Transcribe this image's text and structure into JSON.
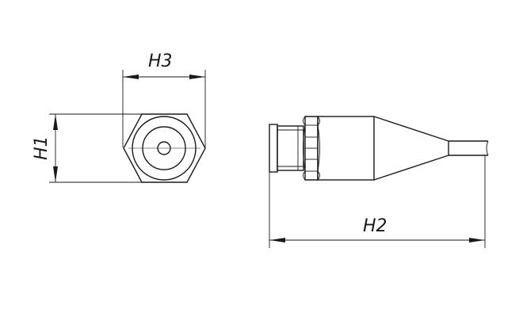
{
  "dimensions": {
    "h1": "H1",
    "h2": "H2",
    "h3": "H3"
  }
}
